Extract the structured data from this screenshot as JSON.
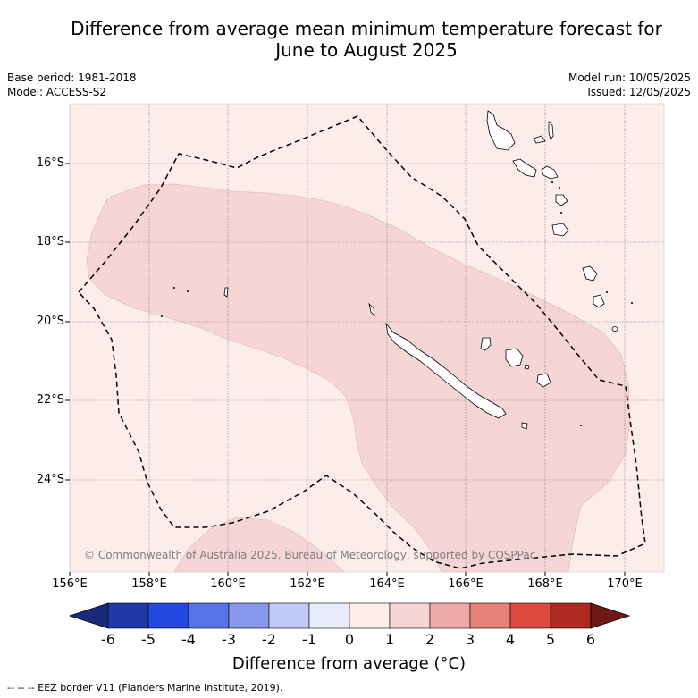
{
  "title_line1": "Difference from average mean minimum temperature forecast for",
  "title_line2": "June to August 2025",
  "base_period": "Base period: 1981-2018",
  "model": "Model: ACCESS-S2",
  "model_run": "Model run: 10/05/2025",
  "issued": "Issued: 12/05/2025",
  "lat_labels": [
    "16°S",
    "18°S",
    "20°S",
    "22°S",
    "24°S"
  ],
  "lon_labels": [
    "156°E",
    "158°E",
    "160°E",
    "162°E",
    "164°E",
    "166°E",
    "168°E",
    "170°E"
  ],
  "copyright": "© Commonwealth of Australia 2025, Bureau of Meteorology, supported by COSPPac",
  "colorbar": {
    "ticks": [
      "-6",
      "-5",
      "-4",
      "-3",
      "-2",
      "-1",
      "0",
      "1",
      "2",
      "3",
      "4",
      "5",
      "6"
    ],
    "colors": [
      "#1f3aa8",
      "#2348e0",
      "#5774e6",
      "#8898ea",
      "#c2c8f4",
      "#e8ebfa",
      "#fcecea",
      "#f5d6d5",
      "#f0aaa6",
      "#e78279",
      "#dd4a3e",
      "#b02a22"
    ],
    "low_extend_color": "#1a2a7a",
    "high_extend_color": "#6e1a14",
    "title": "Difference from average (°C)"
  },
  "map_fill_colors": {
    "0_to_1": "#fcecea",
    "1_to_2": "#f5d6d5"
  },
  "eez_note": "--  --  -- EEZ border V11 (Flanders Marine Institute, 2019)."
}
